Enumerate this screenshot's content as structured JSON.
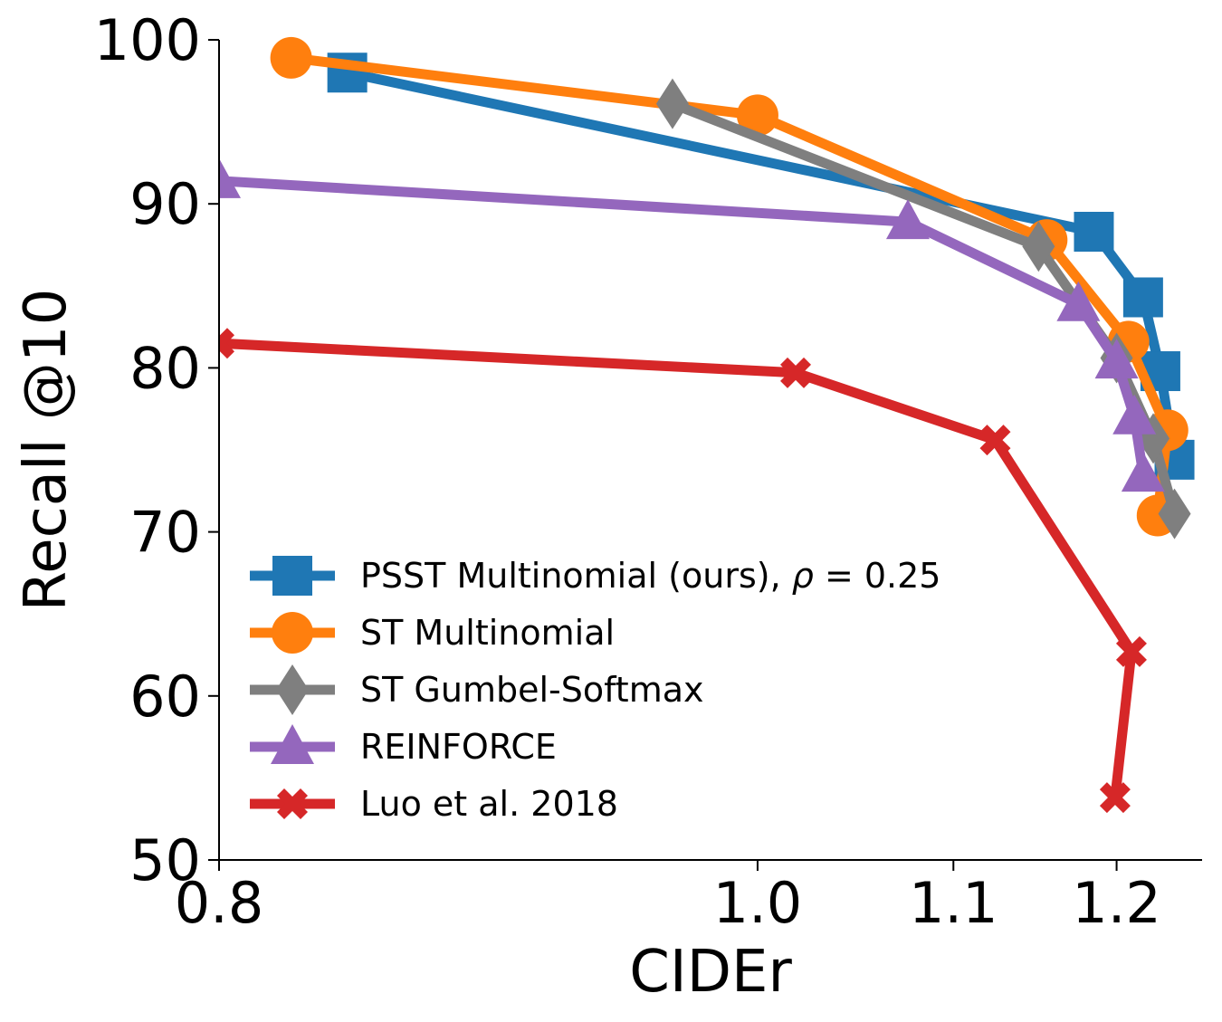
{
  "chart_data": {
    "type": "line",
    "xlabel": "CIDEr",
    "ylabel": "Recall @10",
    "xscale": "reciprocal",
    "xlim": [
      0.8,
      1.26
    ],
    "ylim": [
      50,
      100
    ],
    "xticks": [
      0.8,
      1.0,
      1.1,
      1.2
    ],
    "xtick_labels": [
      "0.8",
      "1.0",
      "1.1",
      "1.2"
    ],
    "yticks": [
      50,
      60,
      70,
      80,
      90,
      100
    ],
    "ytick_labels": [
      "50",
      "60",
      "70",
      "80",
      "90",
      "100"
    ],
    "grid": false,
    "legend_position": "lower-left",
    "series": [
      {
        "name": "PSST Multinomial (ours), ρ = 0.25",
        "name_parts": [
          "PSST Multinomial (ours), ",
          "ρ",
          " = 0.25"
        ],
        "color": "#1f77b4",
        "marker": "square",
        "points": [
          [
            0.84,
            98.0
          ],
          [
            1.185,
            88.3
          ],
          [
            1.218,
            84.3
          ],
          [
            1.23,
            79.8
          ],
          [
            1.24,
            74.4
          ]
        ]
      },
      {
        "name": "ST Multinomial",
        "color": "#ff7f0e",
        "marker": "circle",
        "points": [
          [
            0.822,
            98.9
          ],
          [
            1.0,
            95.4
          ],
          [
            1.155,
            87.8
          ],
          [
            1.208,
            81.6
          ],
          [
            1.235,
            76.2
          ],
          [
            1.228,
            71.0
          ]
        ]
      },
      {
        "name": "ST Gumbel-Softmax",
        "color": "#7f7f7f",
        "marker": "diamond",
        "points": [
          [
            0.962,
            96.1
          ],
          [
            1.15,
            87.4
          ],
          [
            1.2,
            80.6
          ],
          [
            1.225,
            75.7
          ],
          [
            1.24,
            71.1
          ]
        ]
      },
      {
        "name": "REINFORCE",
        "color": "#9467bd",
        "marker": "triangle",
        "points": [
          [
            0.8,
            91.4
          ],
          [
            1.075,
            88.9
          ],
          [
            1.175,
            83.9
          ],
          [
            1.2,
            80.4
          ],
          [
            1.212,
            77.0
          ],
          [
            1.218,
            73.5
          ]
        ]
      },
      {
        "name": "Luo et al. 2018",
        "color": "#d62728",
        "marker": "x",
        "points": [
          [
            0.8,
            81.5
          ],
          [
            1.018,
            79.7
          ],
          [
            1.124,
            75.6
          ],
          [
            1.21,
            62.7
          ],
          [
            1.199,
            53.8
          ]
        ]
      }
    ]
  }
}
